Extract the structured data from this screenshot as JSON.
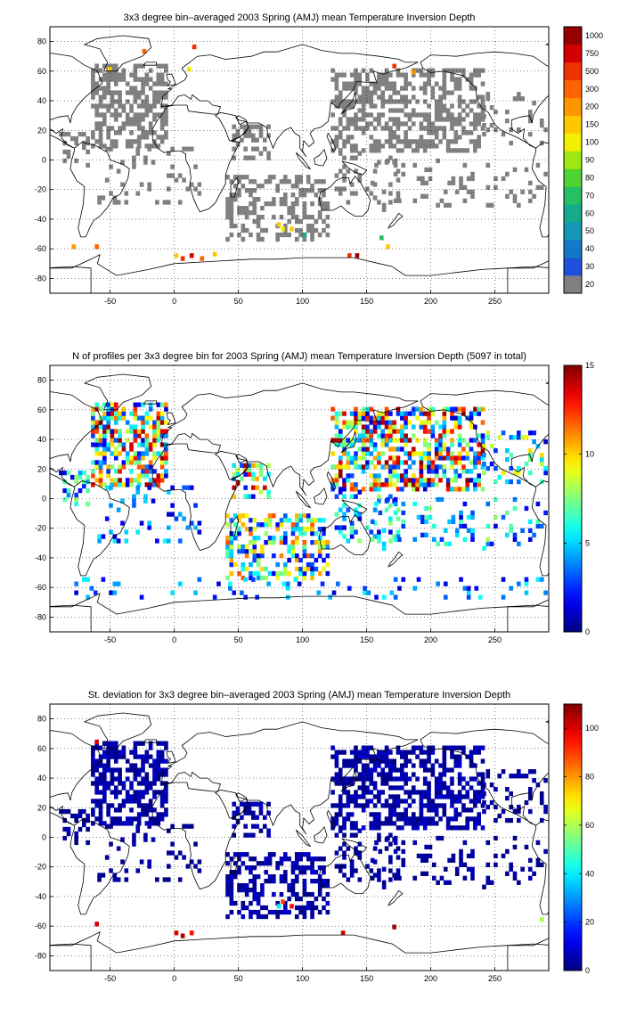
{
  "chart_data": [
    {
      "type": "heatmap",
      "title": "3x3 degree bin–averaged 2003 Spring (AMJ) mean Temperature Inversion Depth",
      "xlabel": "",
      "ylabel": "",
      "xlim": [
        -97,
        292
      ],
      "ylim": [
        -90,
        90
      ],
      "x_ticks": [
        -50,
        0,
        50,
        100,
        150,
        200,
        250
      ],
      "y_ticks": [
        -80,
        -60,
        -40,
        -20,
        0,
        20,
        40,
        60,
        80
      ],
      "grid": true,
      "colorbar": {
        "scale": "discrete",
        "levels": [
          20,
          30,
          40,
          50,
          60,
          70,
          80,
          90,
          100,
          150,
          200,
          300,
          500,
          750,
          1000
        ],
        "labels": [
          "20",
          "30",
          "40",
          "50",
          "60",
          "70",
          "80",
          "90",
          "100",
          "150",
          "200",
          "300",
          "500",
          "750",
          "1000"
        ],
        "colors": [
          "#808080",
          "#1e50dc",
          "#1478c8",
          "#1496b4",
          "#14aa8c",
          "#28be64",
          "#50d232",
          "#a0e614",
          "#f0f000",
          "#ffc800",
          "#ff9600",
          "#ff6400",
          "#f03200",
          "#d20000",
          "#960000"
        ]
      },
      "cell_size_deg": 3,
      "regions": [
        {
          "lon": [
            -65,
            -5
          ],
          "lat": [
            8,
            64
          ],
          "density": 0.55,
          "level": 0
        },
        {
          "lon": [
            -90,
            -68
          ],
          "lat": [
            -5,
            18
          ],
          "density": 0.25,
          "level": 0
        },
        {
          "lon": [
            -60,
            20
          ],
          "lat": [
            -30,
            8
          ],
          "density": 0.15,
          "level": 0
        },
        {
          "lon": [
            45,
            75
          ],
          "lat": [
            0,
            22
          ],
          "density": 0.5,
          "level": 0
        },
        {
          "lon": [
            40,
            120
          ],
          "lat": [
            -55,
            -12
          ],
          "density": 0.4,
          "level": 0
        },
        {
          "lon": [
            122,
            240
          ],
          "lat": [
            5,
            62
          ],
          "density": 0.5,
          "level": 0
        },
        {
          "lon": [
            125,
            175
          ],
          "lat": [
            -30,
            5
          ],
          "density": 0.2,
          "level": 0
        },
        {
          "lon": [
            150,
            290
          ],
          "lat": [
            -35,
            0
          ],
          "density": 0.12,
          "level": 0
        },
        {
          "lon": [
            240,
            290
          ],
          "lat": [
            10,
            45
          ],
          "density": 0.2,
          "level": 0
        }
      ],
      "highlights": [
        {
          "lon": -52,
          "lat": 60,
          "level": 9
        },
        {
          "lon": -25,
          "lat": 72,
          "level": 11
        },
        {
          "lon": 14,
          "lat": 75,
          "level": 12
        },
        {
          "lon": 10,
          "lat": 60,
          "level": 8
        },
        {
          "lon": 170,
          "lat": 62,
          "level": 12
        },
        {
          "lon": 185,
          "lat": 58,
          "level": 10
        },
        {
          "lon": 80,
          "lat": -45,
          "level": 9
        },
        {
          "lon": 83,
          "lat": -48,
          "level": 8
        },
        {
          "lon": 90,
          "lat": -48,
          "level": 9
        },
        {
          "lon": 100,
          "lat": -52,
          "level": 4
        },
        {
          "lon": -80,
          "lat": -60,
          "level": 10
        },
        {
          "lon": -62,
          "lat": -60,
          "level": 11
        },
        {
          "lon": 0,
          "lat": -66,
          "level": 9
        },
        {
          "lon": 5,
          "lat": -68,
          "level": 12
        },
        {
          "lon": 12,
          "lat": -66,
          "level": 13
        },
        {
          "lon": 20,
          "lat": -68,
          "level": 11
        },
        {
          "lon": 30,
          "lat": -65,
          "level": 9
        },
        {
          "lon": 135,
          "lat": -66,
          "level": 12
        },
        {
          "lon": 141,
          "lat": -66,
          "level": 14
        },
        {
          "lon": 165,
          "lat": -60,
          "level": 9
        },
        {
          "lon": 160,
          "lat": -54,
          "level": 5
        }
      ]
    },
    {
      "type": "heatmap",
      "title": "N of profiles per 3x3 degree bin for 2003 Spring (AMJ) mean Temperature Inversion Depth",
      "annotation": "(5097 in total)",
      "xlabel": "",
      "ylabel": "",
      "xlim": [
        -97,
        292
      ],
      "ylim": [
        -90,
        90
      ],
      "x_ticks": [
        -50,
        0,
        50,
        100,
        150,
        200,
        250
      ],
      "y_ticks": [
        -80,
        -60,
        -40,
        -20,
        0,
        20,
        40,
        60,
        80
      ],
      "grid": true,
      "colorbar": {
        "scale": "continuous",
        "vmin": 0,
        "vmax": 15,
        "ticks": [
          0,
          5,
          10,
          15
        ],
        "colormap": "jet"
      },
      "cell_size_deg": 3,
      "regions": [
        {
          "lon": [
            -65,
            -5
          ],
          "lat": [
            8,
            64
          ],
          "density": 0.6,
          "vmin": 1,
          "vmax": 15
        },
        {
          "lon": [
            -90,
            -68
          ],
          "lat": [
            -5,
            18
          ],
          "density": 0.3,
          "vmin": 1,
          "vmax": 8
        },
        {
          "lon": [
            -60,
            20
          ],
          "lat": [
            -30,
            8
          ],
          "density": 0.15,
          "vmin": 1,
          "vmax": 6
        },
        {
          "lon": [
            45,
            75
          ],
          "lat": [
            0,
            22
          ],
          "density": 0.5,
          "vmin": 1,
          "vmax": 15
        },
        {
          "lon": [
            40,
            120
          ],
          "lat": [
            -55,
            -12
          ],
          "density": 0.45,
          "vmin": 1,
          "vmax": 12
        },
        {
          "lon": [
            122,
            240
          ],
          "lat": [
            5,
            62
          ],
          "density": 0.55,
          "vmin": 1,
          "vmax": 15
        },
        {
          "lon": [
            125,
            175
          ],
          "lat": [
            -30,
            5
          ],
          "density": 0.25,
          "vmin": 1,
          "vmax": 8
        },
        {
          "lon": [
            150,
            290
          ],
          "lat": [
            -35,
            0
          ],
          "density": 0.15,
          "vmin": 1,
          "vmax": 8
        },
        {
          "lon": [
            240,
            290
          ],
          "lat": [
            10,
            45
          ],
          "density": 0.25,
          "vmin": 1,
          "vmax": 10
        },
        {
          "lon": [
            -90,
            290
          ],
          "lat": [
            -68,
            -55
          ],
          "density": 0.12,
          "vmin": 1,
          "vmax": 6
        }
      ]
    },
    {
      "type": "heatmap",
      "title": "St. deviation for 3x3 degree bin–averaged 2003 Spring (AMJ) mean Temperature Inversion Depth",
      "xlabel": "",
      "ylabel": "",
      "xlim": [
        -97,
        292
      ],
      "ylim": [
        -90,
        90
      ],
      "x_ticks": [
        -50,
        0,
        50,
        100,
        150,
        200,
        250
      ],
      "y_ticks": [
        -80,
        -60,
        -40,
        -20,
        0,
        20,
        40,
        60,
        80
      ],
      "grid": true,
      "colorbar": {
        "scale": "continuous",
        "vmin": 0,
        "vmax": 110,
        "ticks": [
          0,
          20,
          40,
          60,
          80,
          100
        ],
        "colormap": "jet"
      },
      "cell_size_deg": 3,
      "regions": [
        {
          "lon": [
            -65,
            -5
          ],
          "lat": [
            8,
            64
          ],
          "density": 0.6,
          "vmin": 0,
          "vmax": 8
        },
        {
          "lon": [
            -90,
            -68
          ],
          "lat": [
            -5,
            18
          ],
          "density": 0.3,
          "vmin": 0,
          "vmax": 6
        },
        {
          "lon": [
            -60,
            20
          ],
          "lat": [
            -30,
            8
          ],
          "density": 0.15,
          "vmin": 0,
          "vmax": 6
        },
        {
          "lon": [
            45,
            75
          ],
          "lat": [
            0,
            22
          ],
          "density": 0.5,
          "vmin": 0,
          "vmax": 8
        },
        {
          "lon": [
            40,
            120
          ],
          "lat": [
            -55,
            -12
          ],
          "density": 0.45,
          "vmin": 0,
          "vmax": 8
        },
        {
          "lon": [
            122,
            240
          ],
          "lat": [
            5,
            62
          ],
          "density": 0.55,
          "vmin": 0,
          "vmax": 8
        },
        {
          "lon": [
            125,
            175
          ],
          "lat": [
            -30,
            5
          ],
          "density": 0.25,
          "vmin": 0,
          "vmax": 6
        },
        {
          "lon": [
            150,
            290
          ],
          "lat": [
            -35,
            0
          ],
          "density": 0.15,
          "vmin": 0,
          "vmax": 6
        },
        {
          "lon": [
            240,
            290
          ],
          "lat": [
            10,
            45
          ],
          "density": 0.25,
          "vmin": 0,
          "vmax": 6
        }
      ],
      "highlights": [
        {
          "lon": -62,
          "lat": 63,
          "value": 100
        },
        {
          "lon": 83,
          "lat": -45,
          "value": 90
        },
        {
          "lon": 90,
          "lat": -48,
          "value": 95
        },
        {
          "lon": 80,
          "lat": -48,
          "value": 40
        },
        {
          "lon": -62,
          "lat": -60,
          "value": 100
        },
        {
          "lon": 0,
          "lat": -66,
          "value": 100
        },
        {
          "lon": 5,
          "lat": -68,
          "value": 105
        },
        {
          "lon": 12,
          "lat": -66,
          "value": 95
        },
        {
          "lon": 130,
          "lat": -66,
          "value": 100
        },
        {
          "lon": 170,
          "lat": -62,
          "value": 105
        },
        {
          "lon": 285,
          "lat": -57,
          "value": 60
        }
      ]
    }
  ]
}
